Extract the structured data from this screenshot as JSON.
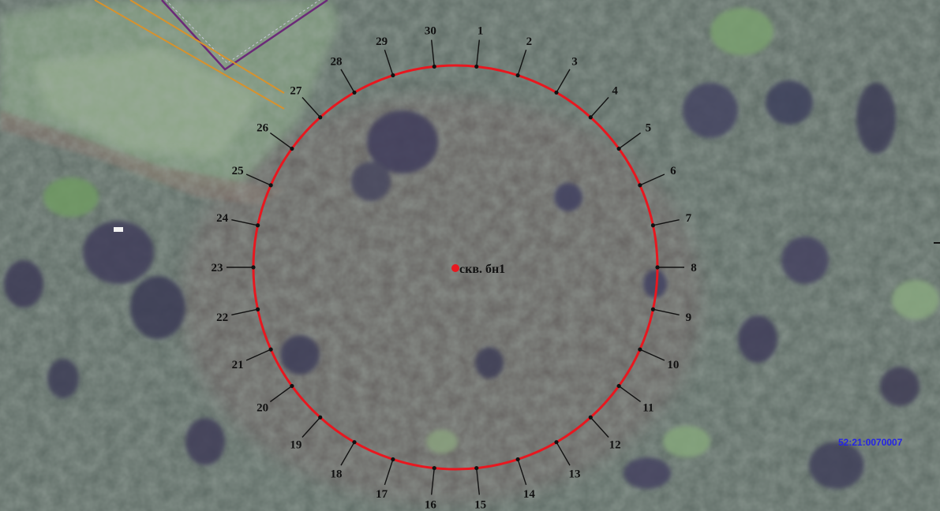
{
  "map": {
    "well_label": "скв. бн1",
    "parcel_id": "52:21:0070007",
    "point_labels": [
      "1",
      "2",
      "3",
      "4",
      "5",
      "6",
      "7",
      "8",
      "9",
      "10",
      "11",
      "12",
      "13",
      "14",
      "15",
      "16",
      "17",
      "18",
      "19",
      "20",
      "21",
      "22",
      "23",
      "24",
      "25",
      "26",
      "27",
      "28",
      "29",
      "30"
    ]
  },
  "colors": {
    "circle": "#e8171f",
    "well_marker": "#e8171f",
    "parcel_text": "#2424e6",
    "parcel_boundary_purple": "#6b2a78",
    "parcel_boundary_orange": "#d7922d",
    "terrain_base": "#5e6b63"
  }
}
